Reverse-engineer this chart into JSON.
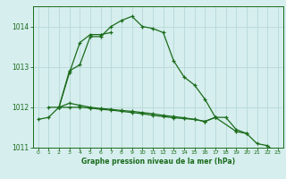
{
  "x": [
    0,
    1,
    2,
    3,
    4,
    5,
    6,
    7,
    8,
    9,
    10,
    11,
    12,
    13,
    14,
    15,
    16,
    17,
    18,
    19,
    20,
    21,
    22,
    23
  ],
  "line1": [
    1011.7,
    1011.75,
    1012.0,
    1012.9,
    1013.05,
    1013.75,
    1013.75,
    1014.0,
    1014.15,
    1014.25,
    1014.0,
    1013.95,
    1013.85,
    1013.15,
    1012.75,
    1012.55,
    1012.2,
    1011.75,
    null,
    null,
    null,
    null,
    null,
    null
  ],
  "line2": [
    null,
    null,
    1012.0,
    1012.85,
    1013.6,
    1013.8,
    1013.8,
    1013.85,
    null,
    null,
    null,
    null,
    null,
    null,
    null,
    null,
    null,
    null,
    null,
    null,
    null,
    null,
    null,
    null
  ],
  "line3": [
    null,
    1012.0,
    1012.0,
    1012.1,
    1012.05,
    1012.0,
    1011.97,
    1011.95,
    1011.92,
    1011.9,
    1011.87,
    1011.84,
    1011.8,
    1011.77,
    1011.74,
    1011.7,
    1011.65,
    1011.75,
    1011.75,
    1011.45,
    1011.35,
    1011.1,
    1011.05,
    1010.85
  ],
  "line4": [
    null,
    null,
    1012.0,
    1012.0,
    1012.0,
    1011.98,
    1011.95,
    1011.93,
    1011.9,
    1011.87,
    1011.84,
    1011.8,
    1011.77,
    1011.74,
    1011.72,
    1011.7,
    1011.65,
    1011.75,
    null,
    1011.4,
    1011.35,
    null,
    null,
    null
  ],
  "bg_color": "#d6eeee",
  "grid_color": "#b8d8d8",
  "line_color": "#1a6b1a",
  "title": "Graphe pression niveau de la mer (hPa)",
  "ylim": [
    1011.0,
    1014.5
  ],
  "yticks": [
    1011,
    1012,
    1013,
    1014
  ],
  "xlim": [
    -0.5,
    23.5
  ],
  "xticks": [
    0,
    1,
    2,
    3,
    4,
    5,
    6,
    7,
    8,
    9,
    10,
    11,
    12,
    13,
    14,
    15,
    16,
    17,
    18,
    19,
    20,
    21,
    22,
    23
  ]
}
